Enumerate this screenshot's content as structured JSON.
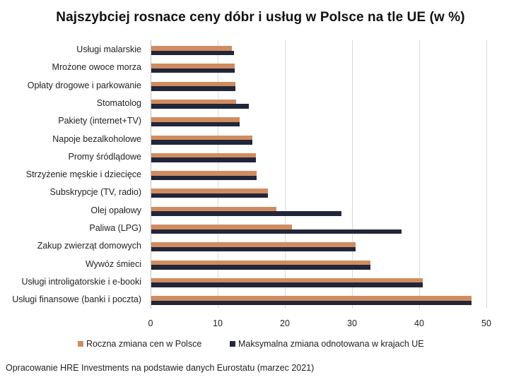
{
  "chart_data": {
    "type": "bar",
    "orientation": "horizontal",
    "title": "Najszybciej rosnace ceny dóbr i usług w Polsce na tle UE (w %)",
    "xlabel": "",
    "ylabel": "",
    "xlim": [
      0,
      50
    ],
    "x_ticks": [
      "0",
      "10",
      "20",
      "30",
      "40",
      "50"
    ],
    "grid": true,
    "legend_position": "bottom",
    "categories": [
      "Usługi malarskie",
      "Mrożone owoce morza",
      "Opłaty drogowe i parkowanie",
      "Stomatolog",
      "Pakiety (internet+TV)",
      "Napoje bezalkoholowe",
      "Promy śródlądowe",
      "Strzyżenie męskie i dziecięce",
      "Subskrypcje (TV, radio)",
      "Olej opałowy",
      "Paliwa (LPG)",
      "Zakup zwierząt domowych",
      "Wywóz śmieci",
      "Usługi introligatorskie i e-booki",
      "Usługi finansowe (banki i poczta)"
    ],
    "series": [
      {
        "name": "Roczna zmiana cen w Polsce",
        "color": "#D08C60",
        "values": [
          12.0,
          12.4,
          12.5,
          12.6,
          13.2,
          15.1,
          15.6,
          15.7,
          17.4,
          18.6,
          20.9,
          30.4,
          32.6,
          40.4,
          47.7
        ]
      },
      {
        "name": "Maksymalna zmiana odnotowana w krajach UE",
        "color": "#222639",
        "values": [
          12.3,
          12.4,
          12.5,
          14.5,
          13.2,
          15.1,
          15.6,
          15.7,
          17.4,
          28.3,
          37.3,
          30.4,
          32.6,
          40.4,
          47.7
        ]
      }
    ]
  },
  "source_note": "Opracowanie HRE Investments na podstawie danych Eurostatu (marzec 2021)"
}
